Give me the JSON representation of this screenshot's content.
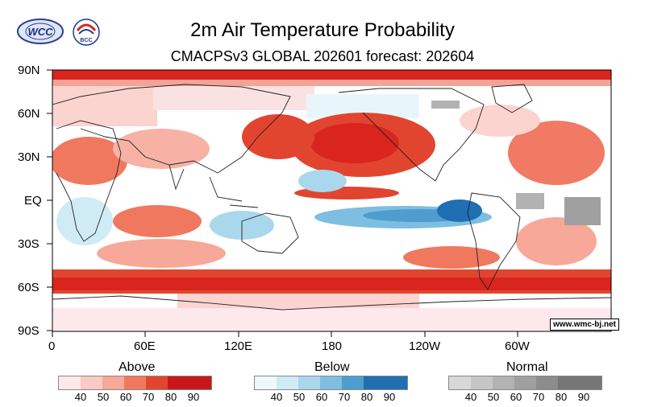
{
  "title": "2m Air Temperature Probability",
  "subtitle": "CMACPSv3 GLOBAL 202601 forecast: 202604",
  "logos": {
    "left_text": "WCC",
    "right_text": "BCC"
  },
  "watermark": "www.wmc-bj.net",
  "map": {
    "lat_labels": [
      "90N",
      "60N",
      "30N",
      "EQ",
      "30S",
      "60S",
      "90S"
    ],
    "lon_labels": [
      "0",
      "60E",
      "120E",
      "180",
      "120W",
      "60W"
    ]
  },
  "legend": {
    "above": {
      "title": "Above",
      "ticks": [
        "40",
        "50",
        "60",
        "70",
        "80",
        "90"
      ],
      "colors": [
        "#fde8ec",
        "#fbcac5",
        "#f7a898",
        "#f0785f",
        "#e2452f",
        "#c9161a"
      ]
    },
    "below": {
      "title": "Below",
      "ticks": [
        "40",
        "50",
        "60",
        "70",
        "80",
        "90"
      ],
      "colors": [
        "#eef8fc",
        "#cfecf5",
        "#a9d8ec",
        "#7ebee0",
        "#4f9dcf",
        "#1f6fb2"
      ]
    },
    "normal": {
      "title": "Normal",
      "ticks": [
        "40",
        "50",
        "60",
        "70",
        "80",
        "90"
      ],
      "colors": [
        "#d8d8d8",
        "#c6c6c6",
        "#b2b2b2",
        "#a0a0a0",
        "#8c8c8c",
        "#767676"
      ]
    }
  }
}
